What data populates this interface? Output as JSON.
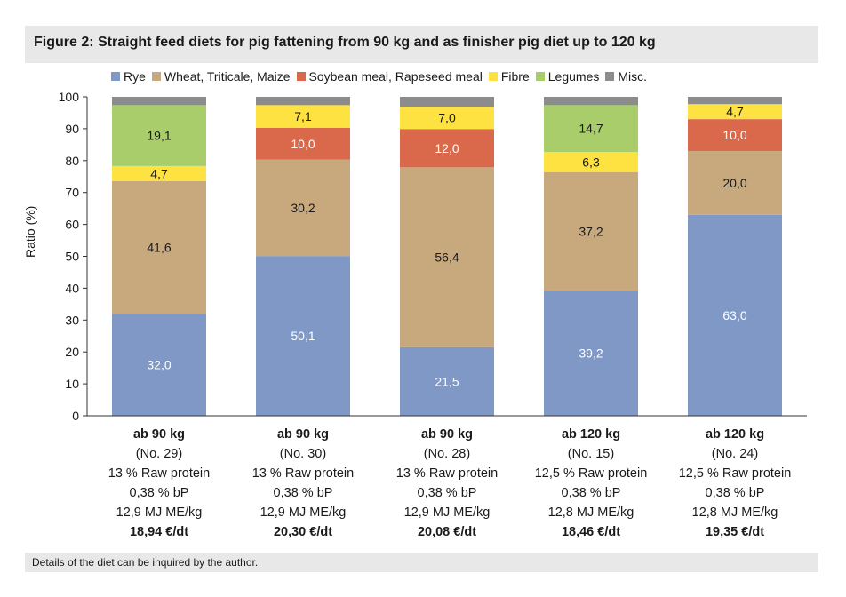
{
  "title": "Figure 2: Straight feed diets for pig fattening from 90 kg and as finisher pig diet up to 120 kg",
  "footer": "Details of the diet can be inquired by the author.",
  "colors": {
    "rye": "#7f98c6",
    "grains": "#c8a97e",
    "soy": "#d9694a",
    "fibre": "#fde241",
    "legumes": "#a8cd6a",
    "misc": "#8c8c8c"
  },
  "chart_data": {
    "type": "bar",
    "stacked": true,
    "ylabel": "Ratio (%)",
    "ylim": [
      0,
      100
    ],
    "yticks": [
      0,
      10,
      20,
      30,
      40,
      50,
      60,
      70,
      80,
      90,
      100
    ],
    "legend_position": "top",
    "categories": [
      {
        "lines": [
          "ab 90 kg",
          "(No. 29)",
          "13 % Raw protein",
          "0,38 % bP",
          "12,9 MJ ME/kg",
          "18,94 €/dt"
        ]
      },
      {
        "lines": [
          "ab 90 kg",
          "(No. 30)",
          "13 % Raw protein",
          "0,38 % bP",
          "12,9 MJ ME/kg",
          "20,30 €/dt"
        ]
      },
      {
        "lines": [
          "ab 90 kg",
          "(No. 28)",
          "13 % Raw protein",
          "0,38 % bP",
          "12,9 MJ ME/kg",
          "20,08 €/dt"
        ]
      },
      {
        "lines": [
          "ab 120 kg",
          "(No. 15)",
          "12,5 % Raw protein",
          "0,38 % bP",
          "12,8 MJ ME/kg",
          "18,46 €/dt"
        ]
      },
      {
        "lines": [
          "ab 120 kg",
          "(No. 24)",
          "12,5 % Raw protein",
          "0,38 % bP",
          "12,8 MJ ME/kg",
          "19,35 €/dt"
        ]
      }
    ],
    "series": [
      {
        "name": "Rye",
        "color_key": "rye",
        "label_color": "#ffffff",
        "values": [
          32.0,
          50.1,
          21.5,
          39.2,
          63.0
        ],
        "labels": [
          "32,0",
          "50,1",
          "21,5",
          "39,2",
          "63,0"
        ]
      },
      {
        "name": "Wheat, Triticale, Maize",
        "color_key": "grains",
        "label_color": "#1a1a1a",
        "values": [
          41.6,
          30.2,
          56.4,
          37.2,
          20.0
        ],
        "labels": [
          "41,6",
          "30,2",
          "56,4",
          "37,2",
          "20,0"
        ]
      },
      {
        "name": "Soybean meal, Rapeseed meal",
        "color_key": "soy",
        "label_color": "#ffffff",
        "values": [
          0,
          10.0,
          12.0,
          0,
          10.0
        ],
        "labels": [
          "",
          "10,0",
          "12,0",
          "",
          "10,0"
        ]
      },
      {
        "name": "Fibre",
        "color_key": "fibre",
        "label_color": "#1a1a1a",
        "values": [
          4.7,
          7.1,
          7.0,
          6.3,
          4.7
        ],
        "labels": [
          "4,7",
          "7,1",
          "7,0",
          "6,3",
          "4,7"
        ]
      },
      {
        "name": "Legumes",
        "color_key": "legumes",
        "label_color": "#1a1a1a",
        "values": [
          19.1,
          0,
          0,
          14.7,
          0
        ],
        "labels": [
          "19,1",
          "",
          "",
          "14,7",
          ""
        ]
      },
      {
        "name": "Misc.",
        "color_key": "misc",
        "label_color": "#ffffff",
        "values": [
          2.6,
          2.6,
          3.1,
          2.6,
          2.3
        ],
        "labels": [
          "",
          "",
          "",
          "",
          ""
        ]
      }
    ]
  }
}
